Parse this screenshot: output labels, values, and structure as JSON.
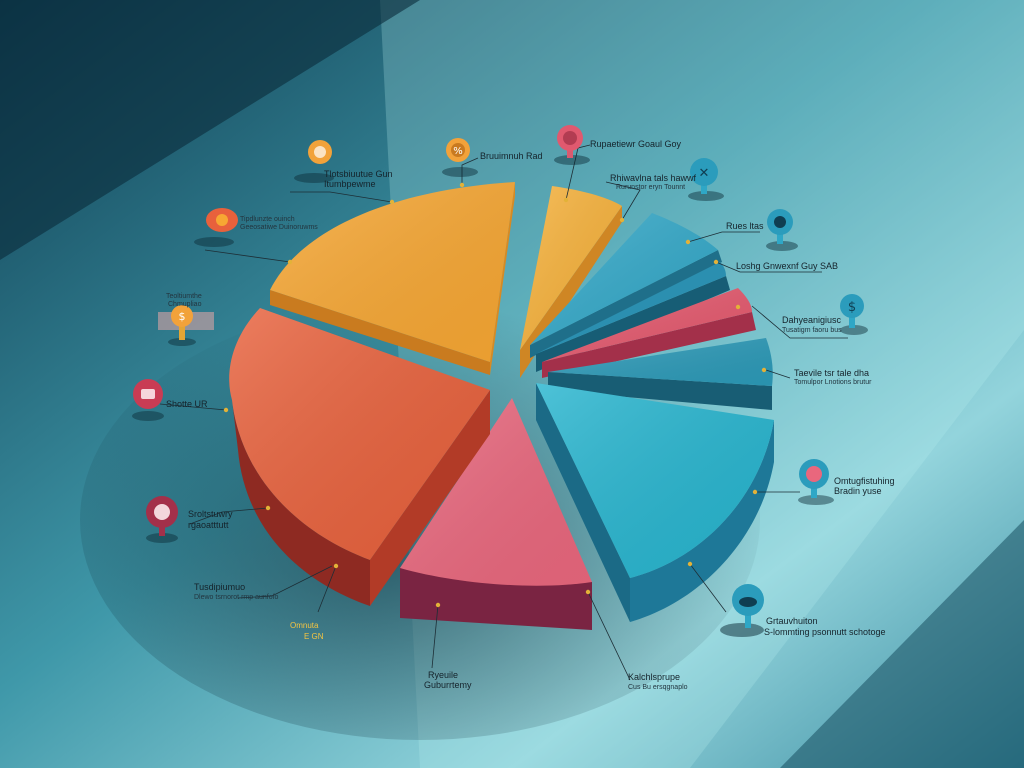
{
  "chart_data": {
    "type": "pie",
    "title": "",
    "style": "3d-exploded",
    "colors": {
      "yellow": "#f7a733",
      "orange": "#e8613c",
      "pink": "#e9677d",
      "blue": "#2fa7c6",
      "teal": "#27b5cf",
      "background": "#2a7f94"
    },
    "slices": [
      {
        "value": 22,
        "color": "#f7a733"
      },
      {
        "value": 5,
        "color": "#f7b23b"
      },
      {
        "value": 5,
        "color": "#34a9c9"
      },
      {
        "value": 4,
        "color": "#2b8fb0"
      },
      {
        "value": 5,
        "color": "#e5596e"
      },
      {
        "value": 5,
        "color": "#2c9ab8"
      },
      {
        "value": 19,
        "color": "#27b5cf"
      },
      {
        "value": 12,
        "color": "#e9677d"
      },
      {
        "value": 23,
        "color": "#e8613c"
      }
    ],
    "labels": [
      {
        "text": "Bruuimnuh Rad",
        "sub": "",
        "icon": "percent-icon"
      },
      {
        "text": "Rupaetiewr Goaul Goy",
        "sub": "",
        "icon": "globe-icon"
      },
      {
        "text": "Rhiwavlna tals hawwf",
        "sub": "Rurunstor eryn Tounnt",
        "icon": "x-icon"
      },
      {
        "text": "Rues ltas",
        "sub": "",
        "icon": "lock-icon"
      },
      {
        "text": "Loshg Gnwexnf Guy SAB",
        "sub": "",
        "icon": ""
      },
      {
        "text": "Dahyeanigiusc",
        "sub": "Tusatigm faoru bus",
        "icon": "dollar-icon"
      },
      {
        "text": "Taevile tsr tale dha",
        "sub": "Tomulpor Lnotions brutur",
        "icon": ""
      },
      {
        "text": "Omtugfistuhing",
        "sub": "Bradin yuse",
        "icon": "pie-icon"
      },
      {
        "text": "Grtauvhuiton",
        "sub": "S-lommting psonnutt schotoge",
        "icon": "cloud-icon"
      },
      {
        "text": "Kalchlsprupe",
        "sub": "Cus Bu ersqgnaplo",
        "icon": ""
      },
      {
        "text": "Ryeuile",
        "sub": "Guburrtemy",
        "icon": ""
      },
      {
        "text": "Omnuta",
        "sub": "E GN",
        "icon": ""
      },
      {
        "text": "Tusdipiumuo",
        "sub": "Dlewo tsrnorot rmp aunfofo",
        "icon": ""
      },
      {
        "text": "Sroltstuwry",
        "sub": "rgaoatttutt",
        "icon": "bar-icon"
      },
      {
        "text": "Shotte UR",
        "sub": "",
        "icon": "chat-icon"
      },
      {
        "text": "Teoltiumthe",
        "sub": "Chmupliao",
        "icon": "dollar-icon"
      },
      {
        "text": "Tipdlunzte ouinch",
        "sub": "Geeosatiwe Duinoruwms",
        "icon": "pen-icon"
      },
      {
        "text": "Tlotsbiuutue Gun",
        "sub": "Itumbpewme",
        "icon": "clock-icon"
      }
    ]
  }
}
